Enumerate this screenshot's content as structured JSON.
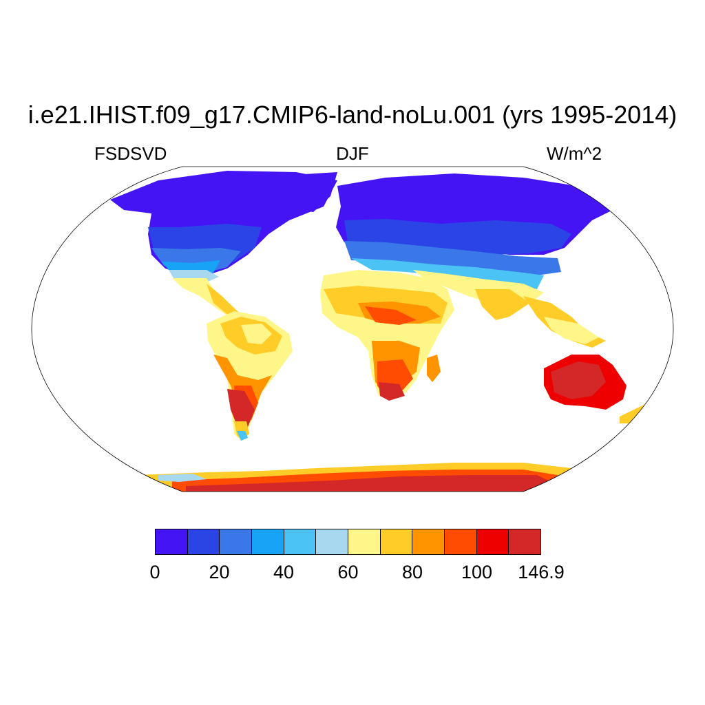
{
  "title": "i.e21.IHIST.f09_g17.CMIP6-land-noLu.001 (yrs 1995-2014)",
  "left_string": "FSDSVD",
  "center_string": "DJF",
  "right_string": "W/m^2",
  "colorbar": {
    "colors": [
      "#4414f5",
      "#2a44e6",
      "#3a78ea",
      "#17a3f6",
      "#4bc3f4",
      "#a8d8f0",
      "#fff68a",
      "#ffcc28",
      "#ff9400",
      "#ff4c00",
      "#ee0000",
      "#d42828"
    ],
    "labels": [
      "0",
      "20",
      "40",
      "60",
      "80",
      "100",
      "146.9"
    ]
  }
}
